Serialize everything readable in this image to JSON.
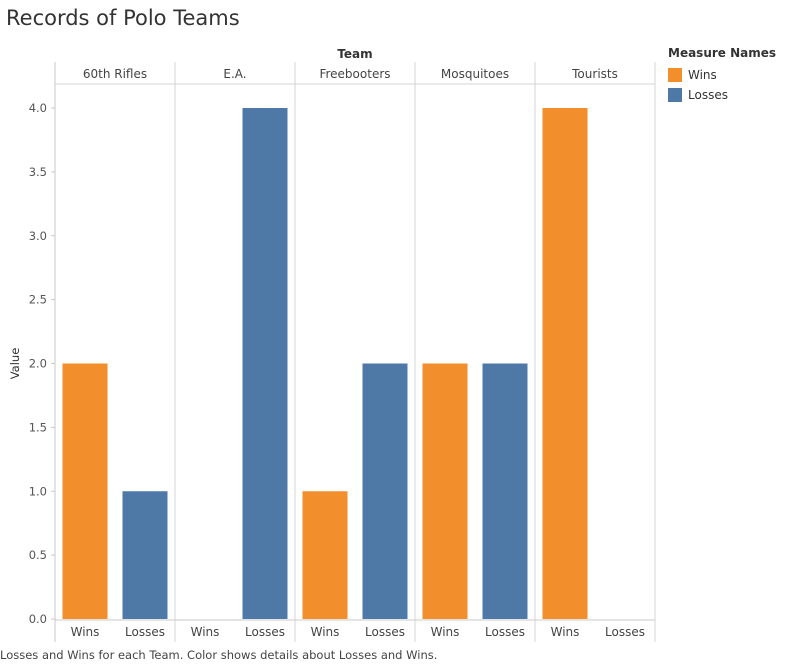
{
  "title": "Records of Polo Teams",
  "caption": "Losses and Wins for each Team.  Color shows details about Losses and Wins.",
  "legend": {
    "title": "Measure Names",
    "items": [
      {
        "label": "Wins",
        "color": "#f28e2b"
      },
      {
        "label": "Losses",
        "color": "#4e79a7"
      }
    ]
  },
  "chart_data": {
    "type": "bar",
    "column_header": "Team",
    "ylabel": "Value",
    "ylim": [
      0,
      4.0
    ],
    "yticks": [
      "0.0",
      "0.5",
      "1.0",
      "1.5",
      "2.0",
      "2.5",
      "3.0",
      "3.5",
      "4.0"
    ],
    "categories": [
      "60th Rifles",
      "E.A.",
      "Freebooters",
      "Mosquitoes",
      "Tourists"
    ],
    "measures": [
      "Wins",
      "Losses"
    ],
    "series": [
      {
        "name": "Wins",
        "color": "#f28e2b",
        "values": [
          2,
          0,
          1,
          2,
          4
        ]
      },
      {
        "name": "Losses",
        "color": "#4e79a7",
        "values": [
          1,
          4,
          2,
          2,
          0
        ]
      }
    ]
  }
}
